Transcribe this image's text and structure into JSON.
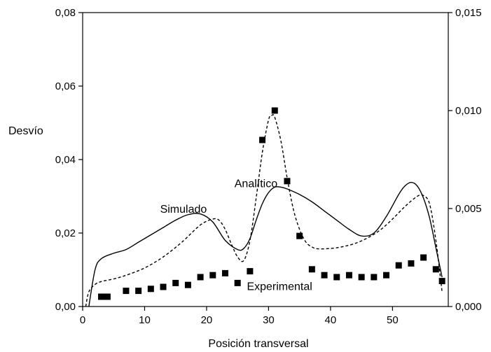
{
  "chart_data": {
    "type": "line",
    "xlabel": "Posición transversal",
    "ylabel": "Desvío",
    "xlim": [
      0,
      59
    ],
    "ylim": [
      0,
      0.08
    ],
    "y2lim": [
      0,
      0.015
    ],
    "x_ticks": [
      0,
      10,
      20,
      30,
      40,
      50
    ],
    "x_tick_labels": [
      "0",
      "10",
      "20",
      "30",
      "40",
      "50"
    ],
    "y_ticks": [
      0,
      0.02,
      0.04,
      0.06,
      0.08
    ],
    "y_tick_labels": [
      "0,00",
      "0,02",
      "0,04",
      "0,06",
      "0,08"
    ],
    "y2_ticks": [
      0,
      0.005,
      0.01,
      0.015
    ],
    "y2_tick_labels": [
      "0,000",
      "0,005",
      "0,010",
      "0,015"
    ],
    "grid": false,
    "legend": "none",
    "series": [
      {
        "name": "Simulado",
        "style": "solid",
        "axis": "left",
        "x": [
          1,
          2,
          3,
          5,
          7,
          9,
          11,
          13,
          15,
          17,
          19,
          21,
          23,
          25,
          26,
          27,
          28,
          29,
          30,
          31,
          32,
          33,
          35,
          37,
          39,
          41,
          43,
          45,
          47,
          49,
          51,
          52,
          53,
          54,
          55,
          56,
          57,
          58
        ],
        "y": [
          0.0,
          0.01,
          0.013,
          0.0145,
          0.0155,
          0.0175,
          0.0195,
          0.0215,
          0.0235,
          0.025,
          0.0252,
          0.023,
          0.018,
          0.0155,
          0.0158,
          0.0185,
          0.0235,
          0.028,
          0.031,
          0.0325,
          0.0325,
          0.032,
          0.0305,
          0.0285,
          0.026,
          0.0235,
          0.021,
          0.0192,
          0.02,
          0.0245,
          0.0305,
          0.0328,
          0.0338,
          0.0328,
          0.0295,
          0.024,
          0.016,
          0.008
        ]
      },
      {
        "name": "Analítico",
        "style": "dashed",
        "axis": "left",
        "x": [
          0.5,
          1,
          2,
          3,
          5,
          7,
          10,
          13,
          16,
          19,
          21,
          22,
          23,
          24,
          25,
          26,
          27,
          28,
          29,
          30,
          30.5,
          31,
          32,
          33,
          34,
          35,
          36,
          37,
          38,
          40,
          42,
          44,
          46,
          48,
          50,
          52,
          54,
          55,
          56,
          57,
          58
        ],
        "y": [
          0.0,
          0.004,
          0.006,
          0.0068,
          0.0075,
          0.0085,
          0.0105,
          0.0135,
          0.0175,
          0.0222,
          0.0238,
          0.0235,
          0.021,
          0.017,
          0.0135,
          0.0125,
          0.018,
          0.0295,
          0.042,
          0.0508,
          0.052,
          0.0515,
          0.045,
          0.035,
          0.0265,
          0.021,
          0.0176,
          0.0162,
          0.0157,
          0.0158,
          0.0163,
          0.0172,
          0.0187,
          0.0208,
          0.0238,
          0.0272,
          0.03,
          0.0302,
          0.0278,
          0.018,
          0.004
        ]
      },
      {
        "name": "Experimental",
        "style": "markers",
        "axis": "right",
        "x": [
          3,
          4,
          7,
          9,
          11,
          13,
          15,
          17,
          19,
          21,
          23,
          25,
          27,
          29,
          31,
          33,
          35,
          37,
          39,
          41,
          43,
          45,
          47,
          49,
          51,
          53,
          55,
          57,
          58
        ],
        "y": [
          0.0005,
          0.0005,
          0.0008,
          0.0008,
          0.0009,
          0.001,
          0.0012,
          0.0011,
          0.0015,
          0.0016,
          0.0017,
          0.0012,
          0.0018,
          0.0085,
          0.01,
          0.0064,
          0.0036,
          0.0019,
          0.0016,
          0.0015,
          0.0016,
          0.0015,
          0.0015,
          0.0016,
          0.0021,
          0.0022,
          0.0025,
          0.0019,
          0.0013
        ]
      }
    ],
    "annotations": [
      {
        "text": "Simulado",
        "x": 12.5,
        "y": 0.0255
      },
      {
        "text": "Analítico",
        "x": 24.5,
        "y": 0.0325
      },
      {
        "text": "Experimental",
        "x": 26.5,
        "y": 0.0045
      }
    ]
  }
}
